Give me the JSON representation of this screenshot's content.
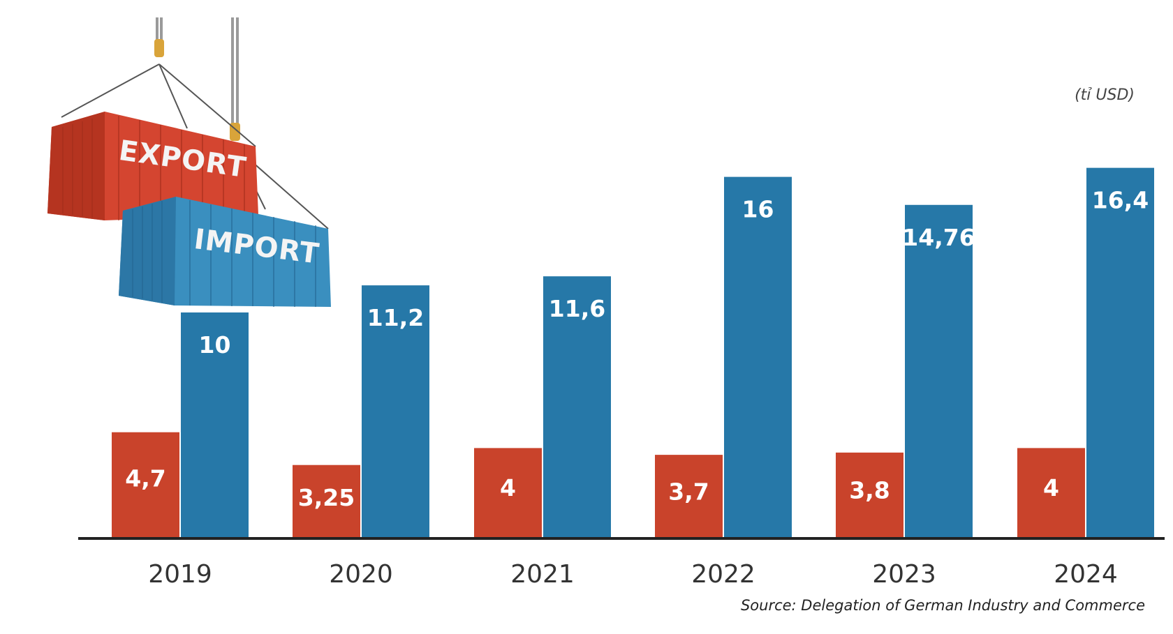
{
  "chart_data": {
    "type": "bar",
    "unit": "(tỉ USD)",
    "source": "Source: Delegation of German Industry and Commerce",
    "categories": [
      "2019",
      "2020",
      "2021",
      "2022",
      "2023",
      "2024"
    ],
    "series": [
      {
        "name": "EXPORT",
        "color": "#c9432b",
        "values": [
          4.7,
          3.25,
          4,
          3.7,
          3.8,
          4
        ],
        "labels": [
          "4,7",
          "3,25",
          "4",
          "3,7",
          "3,8",
          "4"
        ]
      },
      {
        "name": "IMPORT",
        "color": "#2678a8",
        "values": [
          10,
          11.2,
          11.6,
          16,
          14.76,
          16.4
        ],
        "labels": [
          "10",
          "11,2",
          "11,6",
          "16",
          "14,76",
          "16,4"
        ]
      }
    ],
    "ylim": [
      0,
      23
    ],
    "grid": false,
    "legend": "top-left (illustrated shipping containers)"
  },
  "illustration": {
    "export_text": "EXPORT",
    "import_text": "IMPORT",
    "export_color": "#d44530",
    "import_color": "#3a8fbf"
  }
}
